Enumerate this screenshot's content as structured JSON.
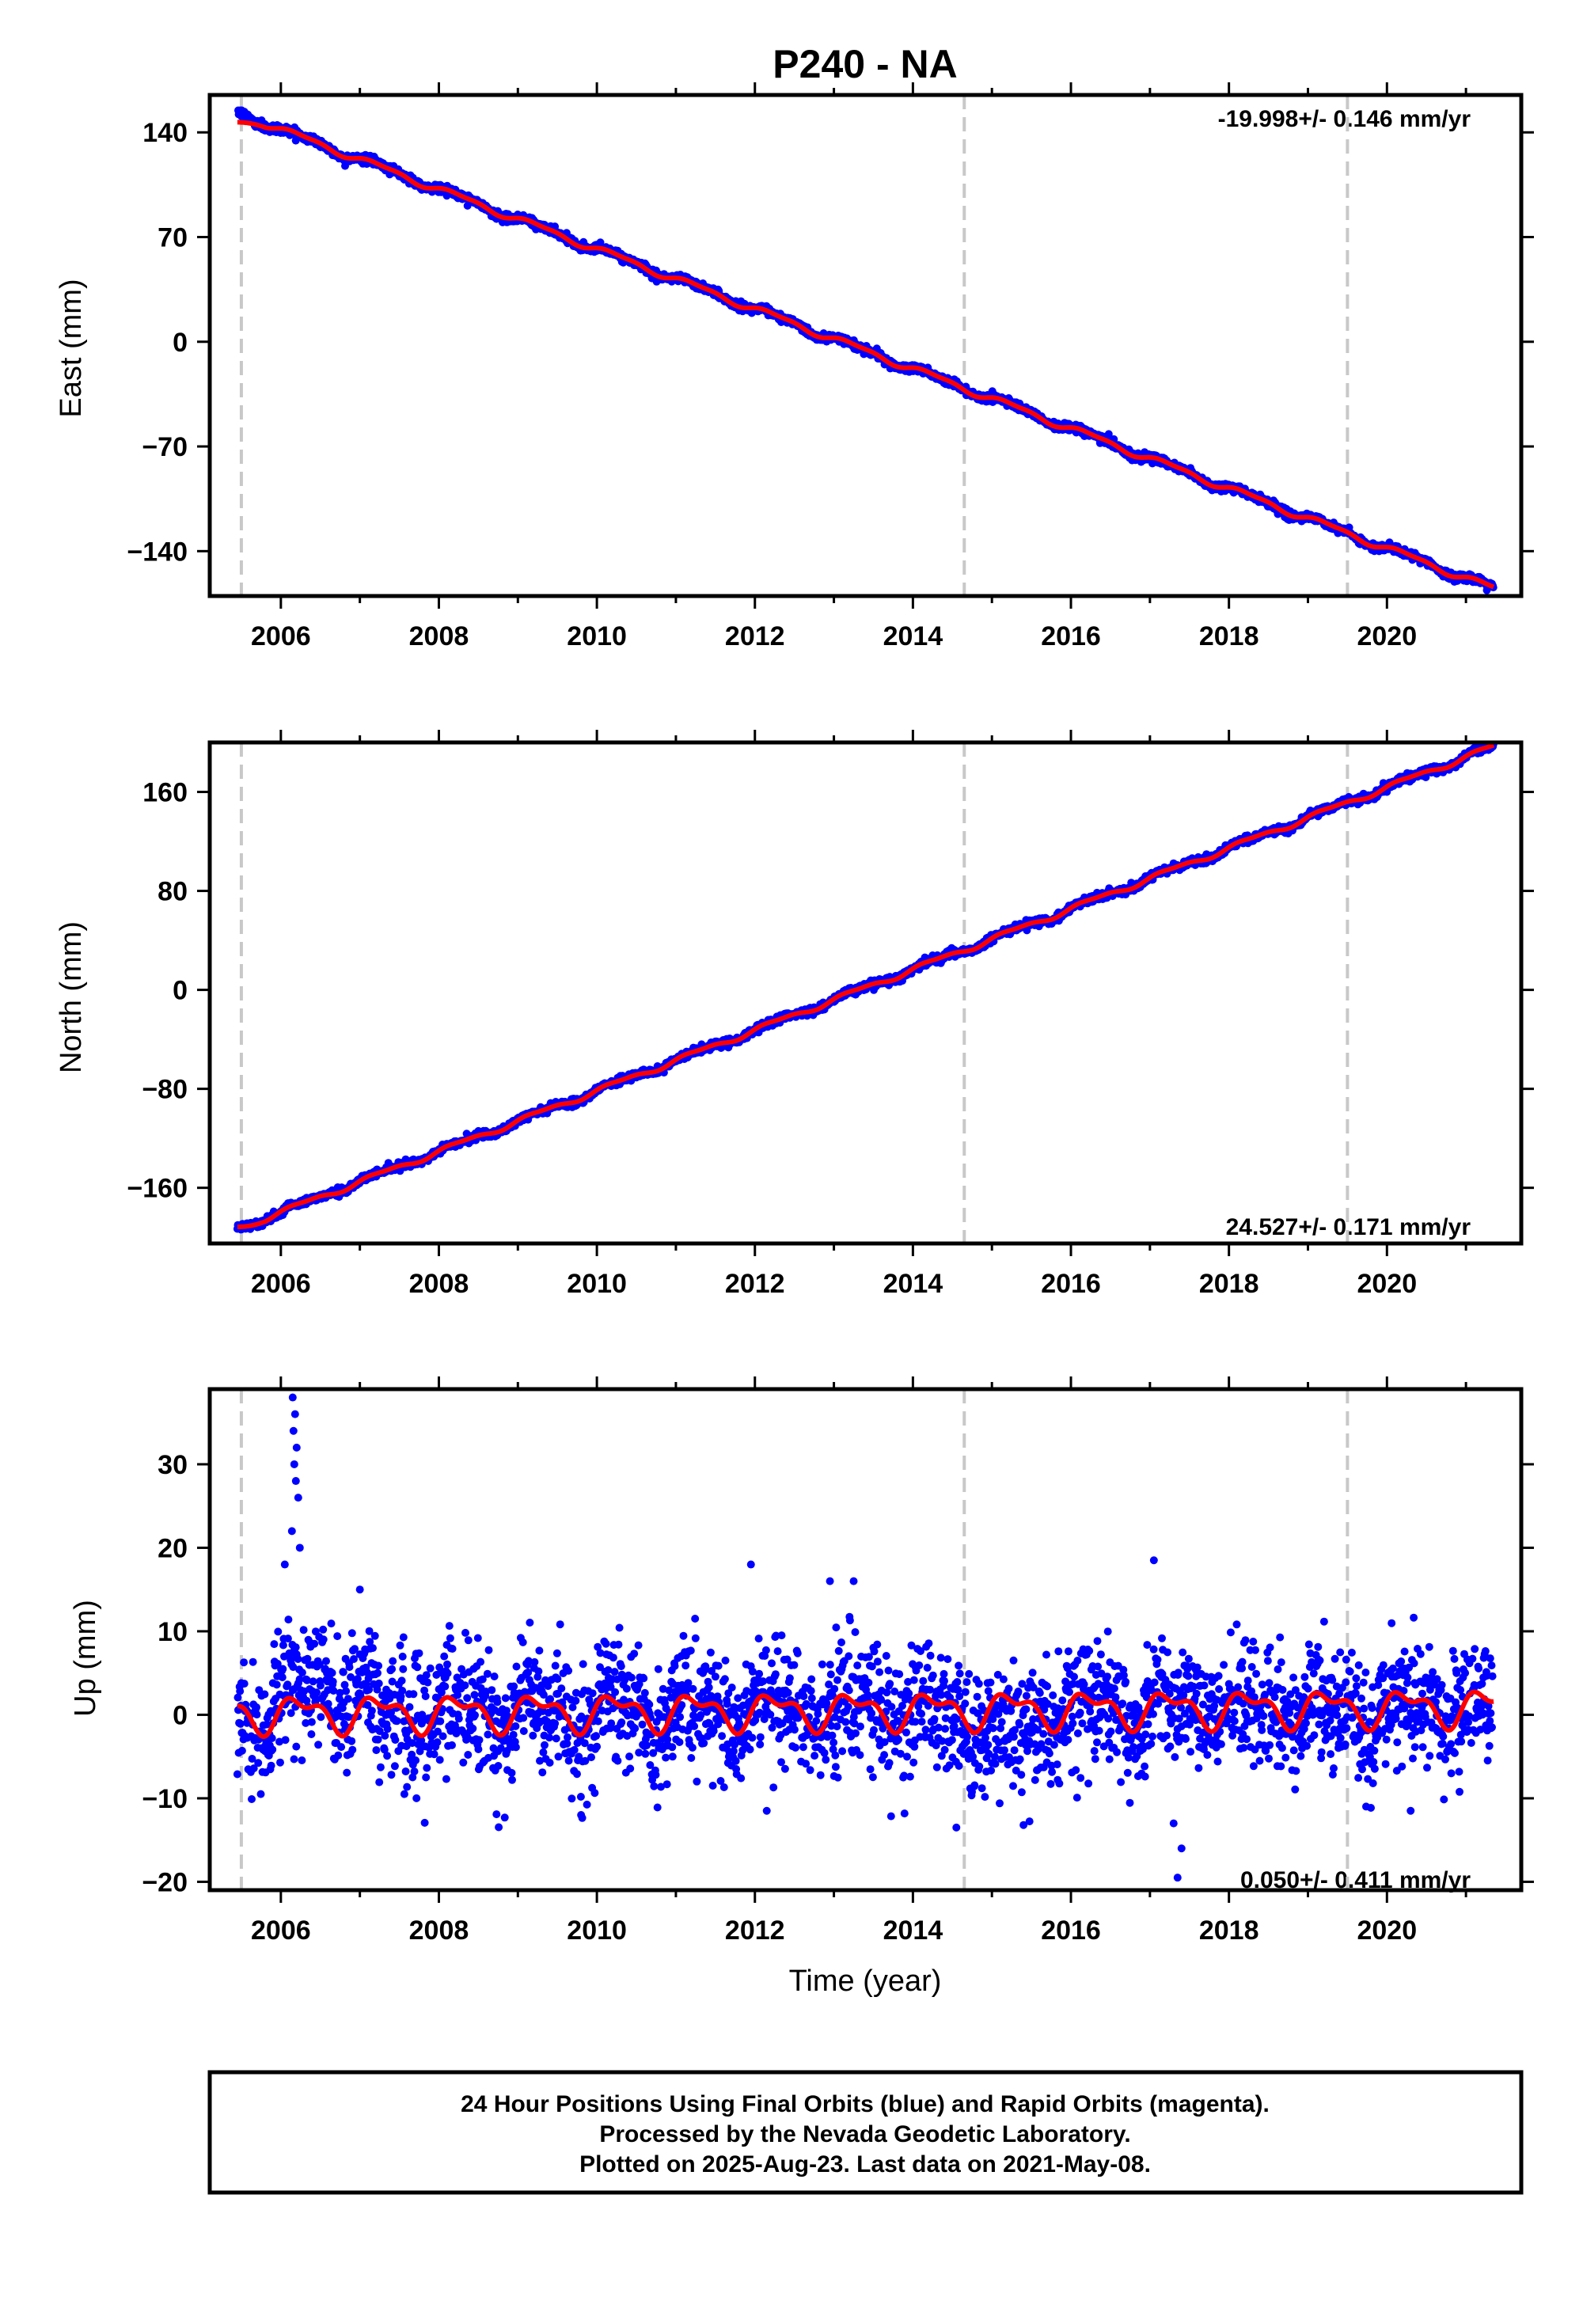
{
  "title": "P240 - NA",
  "colors": {
    "final": "#0000ff",
    "model": "#ff0000",
    "event": "#c8c8c8",
    "frame": "#000000"
  },
  "chart_data": [
    {
      "type": "scatter",
      "panel": "east",
      "ylabel": "East (mm)",
      "xlabel": "",
      "xlim": [
        2005.1,
        2021.7
      ],
      "ylim": [
        -170,
        165
      ],
      "xticks": [
        2006,
        2008,
        2010,
        2012,
        2014,
        2016,
        2018,
        2020
      ],
      "yticks": [
        140,
        70,
        0,
        -70,
        -140
      ],
      "ytick_labels": [
        "140",
        "70",
        "0",
        "−70",
        "−140"
      ],
      "rate_label": "-19.998+/- 0.146 mm/yr",
      "rate_position": "top-right",
      "start": 2005.45,
      "end": 2021.35,
      "rate": -19.998,
      "intercept_at_2013": 2.0,
      "noise": 2.2,
      "annual_amp": 2.0,
      "semiannual_amp": 0.8
    },
    {
      "type": "scatter",
      "panel": "north",
      "ylabel": "North (mm)",
      "xlabel": "",
      "xlim": [
        2005.1,
        2021.7
      ],
      "ylim": [
        -205,
        200
      ],
      "xticks": [
        2006,
        2008,
        2010,
        2012,
        2014,
        2016,
        2018,
        2020
      ],
      "yticks": [
        160,
        80,
        0,
        -80,
        -160
      ],
      "ytick_labels": [
        "160",
        "80",
        "0",
        "−80",
        "−160"
      ],
      "rate_label": "24.527+/- 0.171 mm/yr",
      "rate_position": "bottom-right",
      "start": 2005.45,
      "end": 2021.35,
      "rate": 24.527,
      "intercept_at_2013": -8.0,
      "noise": 2.5,
      "annual_amp": 2.0,
      "semiannual_amp": 0.8
    },
    {
      "type": "scatter",
      "panel": "up",
      "ylabel": "Up (mm)",
      "xlabel": "Time (year)",
      "xlim": [
        2005.1,
        2021.7
      ],
      "ylim": [
        -21,
        39
      ],
      "xticks": [
        2006,
        2008,
        2010,
        2012,
        2014,
        2016,
        2018,
        2020
      ],
      "yticks": [
        30,
        20,
        10,
        0,
        -10,
        -20
      ],
      "ytick_labels": [
        "30",
        "20",
        "10",
        "0",
        "−10",
        "−20"
      ],
      "rate_label": "0.050+/- 0.411 mm/yr",
      "rate_position": "bottom-right",
      "start": 2005.45,
      "end": 2021.35,
      "rate": 0.05,
      "intercept_at_2013": 0.5,
      "noise": 3.6,
      "annual_amp": 1.8,
      "semiannual_amp": 1.0,
      "outliers": [
        {
          "x": 2006.15,
          "y": 38
        },
        {
          "x": 2006.18,
          "y": 36
        },
        {
          "x": 2006.16,
          "y": 34
        },
        {
          "x": 2006.2,
          "y": 32
        },
        {
          "x": 2006.17,
          "y": 30
        },
        {
          "x": 2006.19,
          "y": 28
        },
        {
          "x": 2006.22,
          "y": 26
        },
        {
          "x": 2006.14,
          "y": 22
        },
        {
          "x": 2006.24,
          "y": 20
        },
        {
          "x": 2006.05,
          "y": 18
        },
        {
          "x": 2011.95,
          "y": 18
        },
        {
          "x": 2017.05,
          "y": 18.5
        },
        {
          "x": 2007.0,
          "y": 15
        },
        {
          "x": 2012.95,
          "y": 16
        },
        {
          "x": 2013.25,
          "y": 16
        },
        {
          "x": 2017.4,
          "y": -16
        },
        {
          "x": 2017.35,
          "y": -19.5
        },
        {
          "x": 2017.3,
          "y": -13
        },
        {
          "x": 2014.55,
          "y": -13.5
        },
        {
          "x": 2009.8,
          "y": -12
        },
        {
          "x": 2012.15,
          "y": -11.5
        },
        {
          "x": 2015.4,
          "y": -13.2
        },
        {
          "x": 2020.3,
          "y": -11.5
        }
      ]
    }
  ],
  "event_lines": [
    2005.5,
    2014.65,
    2019.5
  ],
  "footer": {
    "line1": "24 Hour Positions Using Final Orbits (blue) and Rapid Orbits (magenta).",
    "line2": "Processed by the Nevada Geodetic Laboratory.",
    "line3": "Plotted on 2025-Aug-23. Last data on 2021-May-08."
  }
}
